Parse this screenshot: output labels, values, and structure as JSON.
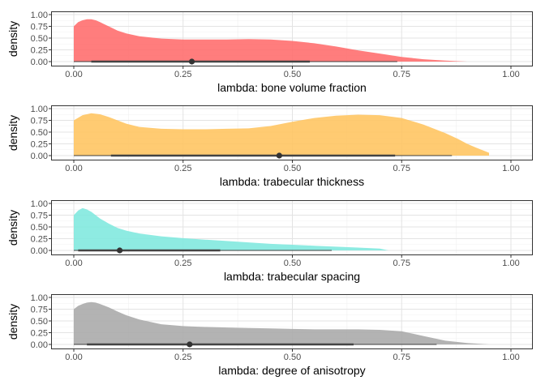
{
  "chart_data": [
    {
      "type": "area",
      "subtype": "density-with-interval",
      "xlabel": "lambda: bone volume fraction",
      "ylabel": "density",
      "xlim": [
        0,
        1
      ],
      "ylim": [
        0,
        1
      ],
      "x_ticks": [
        "0.00",
        "0.25",
        "0.50",
        "0.75",
        "1.00"
      ],
      "y_ticks": [
        "0.00",
        "0.25",
        "0.50",
        "0.75",
        "1.00"
      ],
      "grid": true,
      "fill_color": "#ff6b6b",
      "density": {
        "x": [
          0.0,
          0.01,
          0.02,
          0.03,
          0.04,
          0.05,
          0.06,
          0.08,
          0.1,
          0.12,
          0.15,
          0.2,
          0.25,
          0.3,
          0.35,
          0.4,
          0.45,
          0.5,
          0.55,
          0.6,
          0.65,
          0.7,
          0.75,
          0.8,
          0.85,
          0.9
        ],
        "y": [
          0.75,
          0.84,
          0.88,
          0.9,
          0.9,
          0.88,
          0.84,
          0.75,
          0.66,
          0.6,
          0.54,
          0.49,
          0.47,
          0.47,
          0.47,
          0.48,
          0.47,
          0.44,
          0.39,
          0.32,
          0.24,
          0.17,
          0.1,
          0.05,
          0.02,
          0.0
        ]
      },
      "point": 0.27,
      "interval_inner": [
        0.04,
        0.54
      ],
      "interval_outer": [
        0.0,
        0.74
      ]
    },
    {
      "type": "area",
      "subtype": "density-with-interval",
      "xlabel": "lambda: trabecular thickness",
      "ylabel": "density",
      "xlim": [
        0,
        1
      ],
      "ylim": [
        0,
        1
      ],
      "x_ticks": [
        "0.00",
        "0.25",
        "0.50",
        "0.75",
        "1.00"
      ],
      "y_ticks": [
        "0.00",
        "0.25",
        "0.50",
        "0.75",
        "1.00"
      ],
      "grid": true,
      "fill_color": "#ffc45e",
      "density": {
        "x": [
          0.0,
          0.02,
          0.04,
          0.06,
          0.08,
          0.1,
          0.12,
          0.15,
          0.2,
          0.25,
          0.3,
          0.35,
          0.4,
          0.45,
          0.5,
          0.55,
          0.6,
          0.65,
          0.7,
          0.75,
          0.8,
          0.85,
          0.88,
          0.9,
          0.92,
          0.95
        ],
        "y": [
          0.75,
          0.86,
          0.9,
          0.88,
          0.82,
          0.75,
          0.68,
          0.61,
          0.57,
          0.56,
          0.56,
          0.57,
          0.58,
          0.63,
          0.72,
          0.8,
          0.85,
          0.87,
          0.86,
          0.8,
          0.66,
          0.48,
          0.35,
          0.25,
          0.17,
          0.06
        ]
      },
      "point": 0.47,
      "interval_inner": [
        0.085,
        0.735
      ],
      "interval_outer": [
        0.0,
        0.865
      ]
    },
    {
      "type": "area",
      "subtype": "density-with-interval",
      "xlabel": "lambda: trabecular spacing",
      "ylabel": "density",
      "xlim": [
        0,
        1
      ],
      "ylim": [
        0,
        1
      ],
      "x_ticks": [
        "0.00",
        "0.25",
        "0.50",
        "0.75",
        "1.00"
      ],
      "y_ticks": [
        "0.00",
        "0.25",
        "0.50",
        "0.75",
        "1.00"
      ],
      "grid": true,
      "fill_color": "#7ee8de",
      "density": {
        "x": [
          0.0,
          0.01,
          0.02,
          0.03,
          0.04,
          0.05,
          0.06,
          0.08,
          0.1,
          0.12,
          0.15,
          0.2,
          0.25,
          0.3,
          0.35,
          0.4,
          0.45,
          0.5,
          0.55,
          0.6,
          0.65,
          0.7,
          0.72
        ],
        "y": [
          0.75,
          0.85,
          0.9,
          0.87,
          0.82,
          0.75,
          0.68,
          0.57,
          0.48,
          0.42,
          0.36,
          0.3,
          0.26,
          0.23,
          0.2,
          0.17,
          0.14,
          0.12,
          0.1,
          0.08,
          0.06,
          0.04,
          0.0
        ]
      },
      "point": 0.105,
      "interval_inner": [
        0.01,
        0.335
      ],
      "interval_outer": [
        0.0,
        0.59
      ]
    },
    {
      "type": "area",
      "subtype": "density-with-interval",
      "xlabel": "lambda: degree of anisotropy",
      "ylabel": "density",
      "xlim": [
        0,
        1
      ],
      "ylim": [
        0,
        1
      ],
      "x_ticks": [
        "0.00",
        "0.25",
        "0.50",
        "0.75",
        "1.00"
      ],
      "y_ticks": [
        "0.00",
        "0.25",
        "0.50",
        "0.75",
        "1.00"
      ],
      "grid": true,
      "fill_color": "#a9a9a9",
      "density": {
        "x": [
          0.0,
          0.01,
          0.02,
          0.03,
          0.04,
          0.05,
          0.06,
          0.08,
          0.1,
          0.12,
          0.15,
          0.2,
          0.25,
          0.3,
          0.35,
          0.4,
          0.45,
          0.5,
          0.55,
          0.6,
          0.65,
          0.7,
          0.75,
          0.8,
          0.85,
          0.9,
          0.95
        ],
        "y": [
          0.75,
          0.82,
          0.86,
          0.89,
          0.9,
          0.89,
          0.86,
          0.79,
          0.7,
          0.62,
          0.53,
          0.43,
          0.39,
          0.37,
          0.36,
          0.35,
          0.34,
          0.33,
          0.32,
          0.32,
          0.32,
          0.31,
          0.28,
          0.18,
          0.08,
          0.03,
          0.0
        ]
      },
      "point": 0.265,
      "interval_inner": [
        0.03,
        0.64
      ],
      "interval_outer": [
        0.0,
        0.83
      ]
    }
  ]
}
